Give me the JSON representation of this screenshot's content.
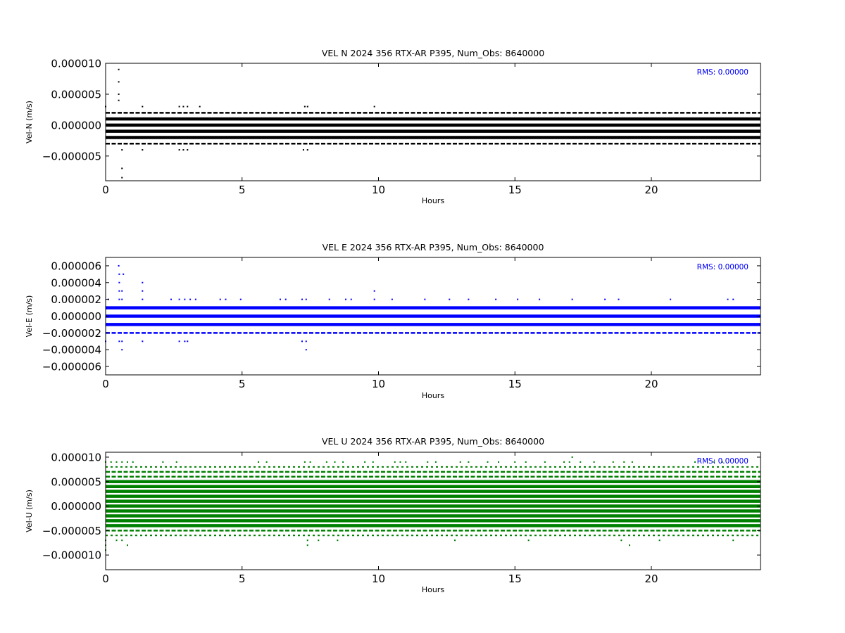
{
  "chart_data": [
    {
      "type": "scatter",
      "title": "VEL N 2024 356 RTX-AR  P395, Num_Obs: 8640000",
      "xlabel": "Hours",
      "ylabel": "Vel-N (m/s)",
      "xlim": [
        0,
        24
      ],
      "ylim": [
        -9e-06,
        1e-05
      ],
      "xticks": [
        0,
        5,
        10,
        15,
        20
      ],
      "xtick_labels": [
        "0",
        "5",
        "10",
        "15",
        "20"
      ],
      "yticks": [
        1e-05,
        5e-06,
        0,
        -5e-06
      ],
      "ytick_labels": [
        "0.000010",
        "0.000005",
        "0.000000",
        "−0.000005"
      ],
      "annotation": "RMS:  0.00000",
      "grid": false,
      "color": "#000000",
      "series": [
        {
          "levels": [
            1e-06,
            0.0,
            -1e-06,
            -2e-06
          ],
          "coverage": "continuous"
        },
        {
          "levels": [
            2e-06,
            -3e-06
          ],
          "coverage": "frequent"
        },
        {
          "levels": [
            3e-06
          ],
          "times": [
            0.0,
            2.7,
            2.85,
            3.0,
            3.45,
            7.3,
            7.4,
            1.35,
            9.85
          ]
        },
        {
          "levels": [
            -4e-06
          ],
          "times": [
            0.6,
            1.35,
            2.7,
            2.85,
            3.0,
            7.25,
            7.4
          ]
        },
        {
          "levels": [
            4e-06,
            5e-06,
            7e-06,
            9e-06
          ],
          "times": [
            0.48
          ]
        },
        {
          "levels": [
            -7e-06,
            -8.5e-06
          ],
          "times": [
            0.6
          ]
        }
      ]
    },
    {
      "type": "scatter",
      "title": "VEL E 2024 356 RTX-AR  P395, Num_Obs: 8640000",
      "xlabel": "Hours",
      "ylabel": "Vel-E (m/s)",
      "xlim": [
        0,
        24
      ],
      "ylim": [
        -7e-06,
        7e-06
      ],
      "xticks": [
        0,
        5,
        10,
        15,
        20
      ],
      "xtick_labels": [
        "0",
        "5",
        "10",
        "15",
        "20"
      ],
      "yticks": [
        6e-06,
        4e-06,
        2e-06,
        0,
        -2e-06,
        -4e-06,
        -6e-06
      ],
      "ytick_labels": [
        "0.000006",
        "0.000004",
        "0.000002",
        "0.000000",
        "−0.000002",
        "−0.000004",
        "−0.000006"
      ],
      "annotation": "RMS:  0.00000",
      "grid": false,
      "color": "#0000ff",
      "series": [
        {
          "levels": [
            1e-06,
            0.0,
            -1e-06
          ],
          "coverage": "continuous"
        },
        {
          "levels": [
            -2e-06
          ],
          "coverage": "frequent"
        },
        {
          "levels": [
            2e-06
          ],
          "times": [
            0.1,
            0.5,
            0.6,
            1.35,
            2.4,
            2.7,
            2.9,
            3.1,
            3.3,
            4.2,
            4.4,
            4.95,
            6.4,
            6.6,
            7.2,
            7.35,
            8.2,
            8.8,
            9.0,
            9.85,
            10.5,
            11.7,
            12.6,
            13.3,
            14.3,
            15.1,
            15.9,
            17.1,
            18.3,
            18.8,
            20.7,
            22.8,
            23.0
          ]
        },
        {
          "levels": [
            -3e-06
          ],
          "times": [
            0.0,
            0.5,
            0.6,
            1.35,
            2.7,
            2.9,
            3.0,
            7.2,
            7.35
          ]
        },
        {
          "levels": [
            3e-06
          ],
          "times": [
            0.5,
            0.6,
            1.35,
            9.85
          ]
        },
        {
          "levels": [
            4e-06
          ],
          "times": [
            0.5,
            1.35
          ]
        },
        {
          "levels": [
            5e-06
          ],
          "times": [
            0.5,
            0.65
          ]
        },
        {
          "levels": [
            6e-06
          ],
          "times": [
            0.48
          ]
        },
        {
          "levels": [
            -4e-06
          ],
          "times": [
            0.6,
            7.35
          ]
        }
      ]
    },
    {
      "type": "scatter",
      "title": "VEL U 2024 356 RTX-AR  P395, Num_Obs: 8640000",
      "xlabel": "Hours",
      "ylabel": "Vel-U (m/s)",
      "xlim": [
        0,
        24
      ],
      "ylim": [
        -1.3e-05,
        1.1e-05
      ],
      "xticks": [
        0,
        5,
        10,
        15,
        20
      ],
      "xtick_labels": [
        "0",
        "5",
        "10",
        "15",
        "20"
      ],
      "yticks": [
        1e-05,
        5e-06,
        0,
        -5e-06,
        -1e-05
      ],
      "ytick_labels": [
        "0.000010",
        "0.000005",
        "0.000000",
        "−0.000005",
        "−0.000010"
      ],
      "annotation": "RMS:  0.00000",
      "grid": false,
      "color": "#008000",
      "series": [
        {
          "levels": [
            5e-06,
            4e-06,
            3e-06,
            2e-06,
            1e-06,
            0.0,
            -1e-06,
            -2e-06,
            -3e-06,
            -4e-06
          ],
          "coverage": "continuous"
        },
        {
          "levels": [
            6e-06,
            7e-06,
            -5e-06
          ],
          "coverage": "frequent"
        },
        {
          "levels": [
            8e-06,
            -6e-06
          ],
          "coverage": "sparse"
        },
        {
          "levels": [
            9e-06
          ],
          "times": [
            0.0,
            0.2,
            0.4,
            0.6,
            0.8,
            1.0,
            2.1,
            2.6,
            5.6,
            5.9,
            7.3,
            7.5,
            8.1,
            8.4,
            8.7,
            9.5,
            9.8,
            10.6,
            10.8,
            11.0,
            11.8,
            12.1,
            13.0,
            13.3,
            14.0,
            14.4,
            15.0,
            15.4,
            16.1,
            16.8,
            17.0,
            17.4,
            17.9,
            18.6,
            19.0,
            19.3,
            21.6,
            22.3,
            22.6
          ]
        },
        {
          "levels": [
            1e-05
          ],
          "times": [
            17.1
          ]
        },
        {
          "levels": [
            -7e-06
          ],
          "times": [
            0.0,
            0.4,
            0.6,
            7.4,
            7.8,
            8.5,
            12.8,
            15.5,
            18.9,
            20.3,
            23.0
          ]
        },
        {
          "levels": [
            -8e-06
          ],
          "times": [
            0.0,
            0.8,
            7.4,
            19.2
          ]
        },
        {
          "levels": [
            -9e-06
          ],
          "times": [
            0.0
          ]
        }
      ]
    }
  ]
}
